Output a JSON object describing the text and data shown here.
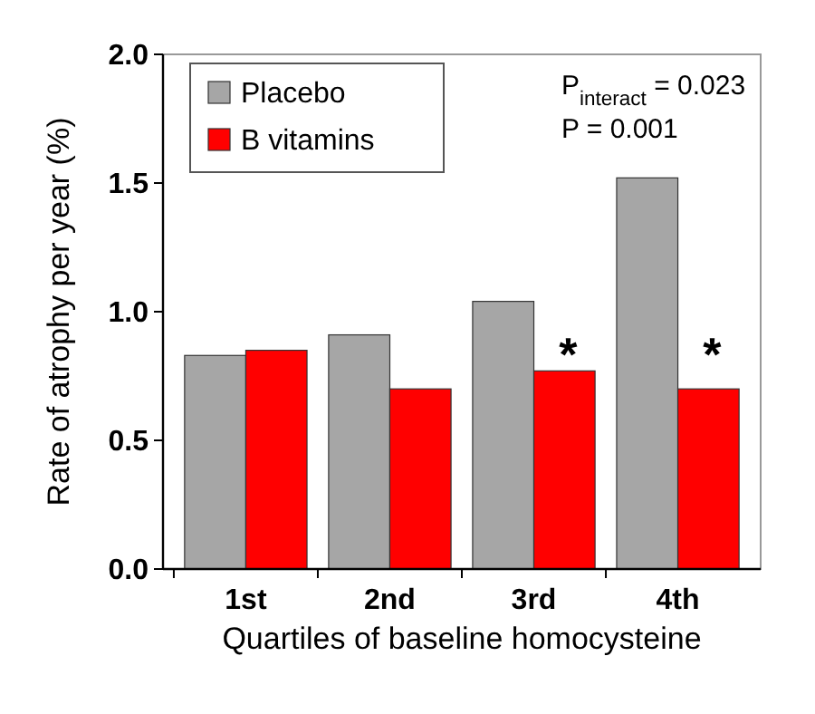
{
  "chart_data": {
    "type": "bar",
    "xlabel": "Quartiles of baseline homocysteine",
    "ylabel": "Rate of atrophy per year (%)",
    "categories": [
      "1st",
      "2nd",
      "3rd",
      "4th"
    ],
    "series": [
      {
        "name": "Placebo",
        "color": "#a6a6a6",
        "values": [
          0.83,
          0.91,
          1.04,
          1.52
        ]
      },
      {
        "name": "B vitamins",
        "color": "#ff0000",
        "values": [
          0.85,
          0.7,
          0.77,
          0.7
        ]
      }
    ],
    "ylim": [
      0,
      2
    ],
    "yticks": [
      {
        "value": 0,
        "label": "0.0"
      },
      {
        "value": 0.5,
        "label": "0.5"
      },
      {
        "value": 1,
        "label": "1.0"
      },
      {
        "value": 1.5,
        "label": "1.5"
      },
      {
        "value": 2,
        "label": "2.0"
      }
    ],
    "legend": "top left",
    "annotations": [
      "P$_{interact}$ = 0.023",
      "P = 0.001",
      {
        "text": "*",
        "x": "3rd",
        "y": 0.9
      },
      {
        "text": "*",
        "x": "4th",
        "y": 0.9
      }
    ]
  }
}
